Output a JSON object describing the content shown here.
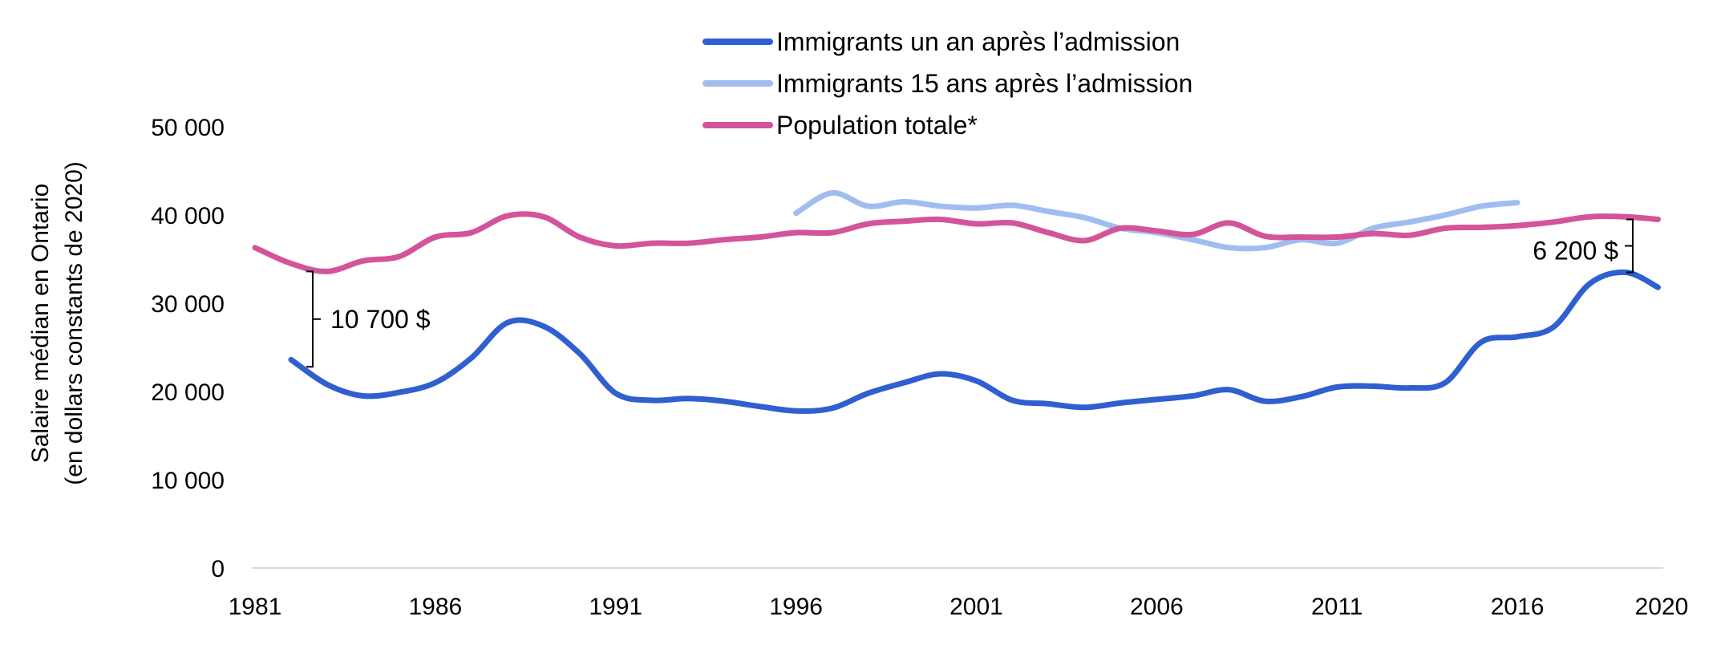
{
  "chart_data": {
    "type": "line",
    "title": "",
    "ylabel_lines": [
      "Salaire médian en Ontario",
      "(en dollars constants de 2020)"
    ],
    "xlabel": "",
    "xlim": [
      1981,
      2020
    ],
    "ylim": [
      0,
      50000
    ],
    "x_ticks": [
      1981,
      1986,
      1991,
      1996,
      2001,
      2006,
      2011,
      2016,
      2020
    ],
    "y_ticks": [
      {
        "value": 0,
        "label": "0"
      },
      {
        "value": 10000,
        "label": "10 000"
      },
      {
        "value": 20000,
        "label": "20 000"
      },
      {
        "value": 30000,
        "label": "30 000"
      },
      {
        "value": 40000,
        "label": "40 000"
      },
      {
        "value": 50000,
        "label": "50 000"
      }
    ],
    "grid": false,
    "legend_position": "top-center",
    "series": [
      {
        "name": "Immigrants un an après l’admission",
        "color": "#2f5fd0",
        "points": [
          [
            1982,
            23600
          ],
          [
            1983,
            20800
          ],
          [
            1984,
            19500
          ],
          [
            1985,
            19900
          ],
          [
            1986,
            21000
          ],
          [
            1987,
            23800
          ],
          [
            1988,
            27800
          ],
          [
            1989,
            27400
          ],
          [
            1990,
            24300
          ],
          [
            1991,
            19800
          ],
          [
            1992,
            19000
          ],
          [
            1993,
            19200
          ],
          [
            1994,
            18900
          ],
          [
            1995,
            18300
          ],
          [
            1996,
            17800
          ],
          [
            1997,
            18100
          ],
          [
            1998,
            19800
          ],
          [
            1999,
            21000
          ],
          [
            2000,
            22000
          ],
          [
            2001,
            21200
          ],
          [
            2002,
            19000
          ],
          [
            2003,
            18600
          ],
          [
            2004,
            18200
          ],
          [
            2005,
            18700
          ],
          [
            2006,
            19100
          ],
          [
            2007,
            19500
          ],
          [
            2008,
            20200
          ],
          [
            2009,
            18900
          ],
          [
            2010,
            19400
          ],
          [
            2011,
            20500
          ],
          [
            2012,
            20600
          ],
          [
            2013,
            20400
          ],
          [
            2014,
            21000
          ],
          [
            2015,
            25600
          ],
          [
            2016,
            26200
          ],
          [
            2017,
            27300
          ],
          [
            2018,
            32200
          ],
          [
            2019,
            33500
          ],
          [
            2019.9,
            31800
          ]
        ]
      },
      {
        "name": "Immigrants 15 ans après l’admission",
        "color": "#a1bdf0",
        "points": [
          [
            1996,
            40200
          ],
          [
            1997,
            42500
          ],
          [
            1998,
            41000
          ],
          [
            1999,
            41500
          ],
          [
            2000,
            41000
          ],
          [
            2001,
            40800
          ],
          [
            2002,
            41100
          ],
          [
            2003,
            40400
          ],
          [
            2004,
            39700
          ],
          [
            2005,
            38500
          ],
          [
            2006,
            38000
          ],
          [
            2007,
            37200
          ],
          [
            2008,
            36300
          ],
          [
            2009,
            36300
          ],
          [
            2010,
            37200
          ],
          [
            2011,
            36800
          ],
          [
            2012,
            38500
          ],
          [
            2013,
            39200
          ],
          [
            2014,
            40000
          ],
          [
            2015,
            41000
          ],
          [
            2016,
            41400
          ]
        ]
      },
      {
        "name": "Population totale*",
        "color": "#d4549b",
        "points": [
          [
            1981,
            36300
          ],
          [
            1982,
            34500
          ],
          [
            1983,
            33600
          ],
          [
            1984,
            34800
          ],
          [
            1985,
            35300
          ],
          [
            1986,
            37500
          ],
          [
            1987,
            38000
          ],
          [
            1988,
            39900
          ],
          [
            1989,
            39800
          ],
          [
            1990,
            37500
          ],
          [
            1991,
            36500
          ],
          [
            1992,
            36800
          ],
          [
            1993,
            36800
          ],
          [
            1994,
            37200
          ],
          [
            1995,
            37500
          ],
          [
            1996,
            38000
          ],
          [
            1997,
            38000
          ],
          [
            1998,
            39000
          ],
          [
            1999,
            39300
          ],
          [
            2000,
            39500
          ],
          [
            2001,
            39000
          ],
          [
            2002,
            39100
          ],
          [
            2003,
            38000
          ],
          [
            2004,
            37100
          ],
          [
            2005,
            38500
          ],
          [
            2006,
            38200
          ],
          [
            2007,
            37800
          ],
          [
            2008,
            39100
          ],
          [
            2009,
            37600
          ],
          [
            2010,
            37500
          ],
          [
            2011,
            37500
          ],
          [
            2012,
            37900
          ],
          [
            2013,
            37700
          ],
          [
            2014,
            38500
          ],
          [
            2015,
            38600
          ],
          [
            2016,
            38800
          ],
          [
            2017,
            39200
          ],
          [
            2018,
            39800
          ],
          [
            2019,
            39800
          ],
          [
            2019.9,
            39500
          ]
        ]
      }
    ],
    "annotations": [
      {
        "label": "10 700 $",
        "x": 1982.6,
        "y_top": 33600,
        "y_bottom": 22800,
        "side": "right"
      },
      {
        "label": "6 200 $",
        "x": 2019.2,
        "y_top": 39500,
        "y_bottom": 33500,
        "side": "left"
      }
    ]
  }
}
